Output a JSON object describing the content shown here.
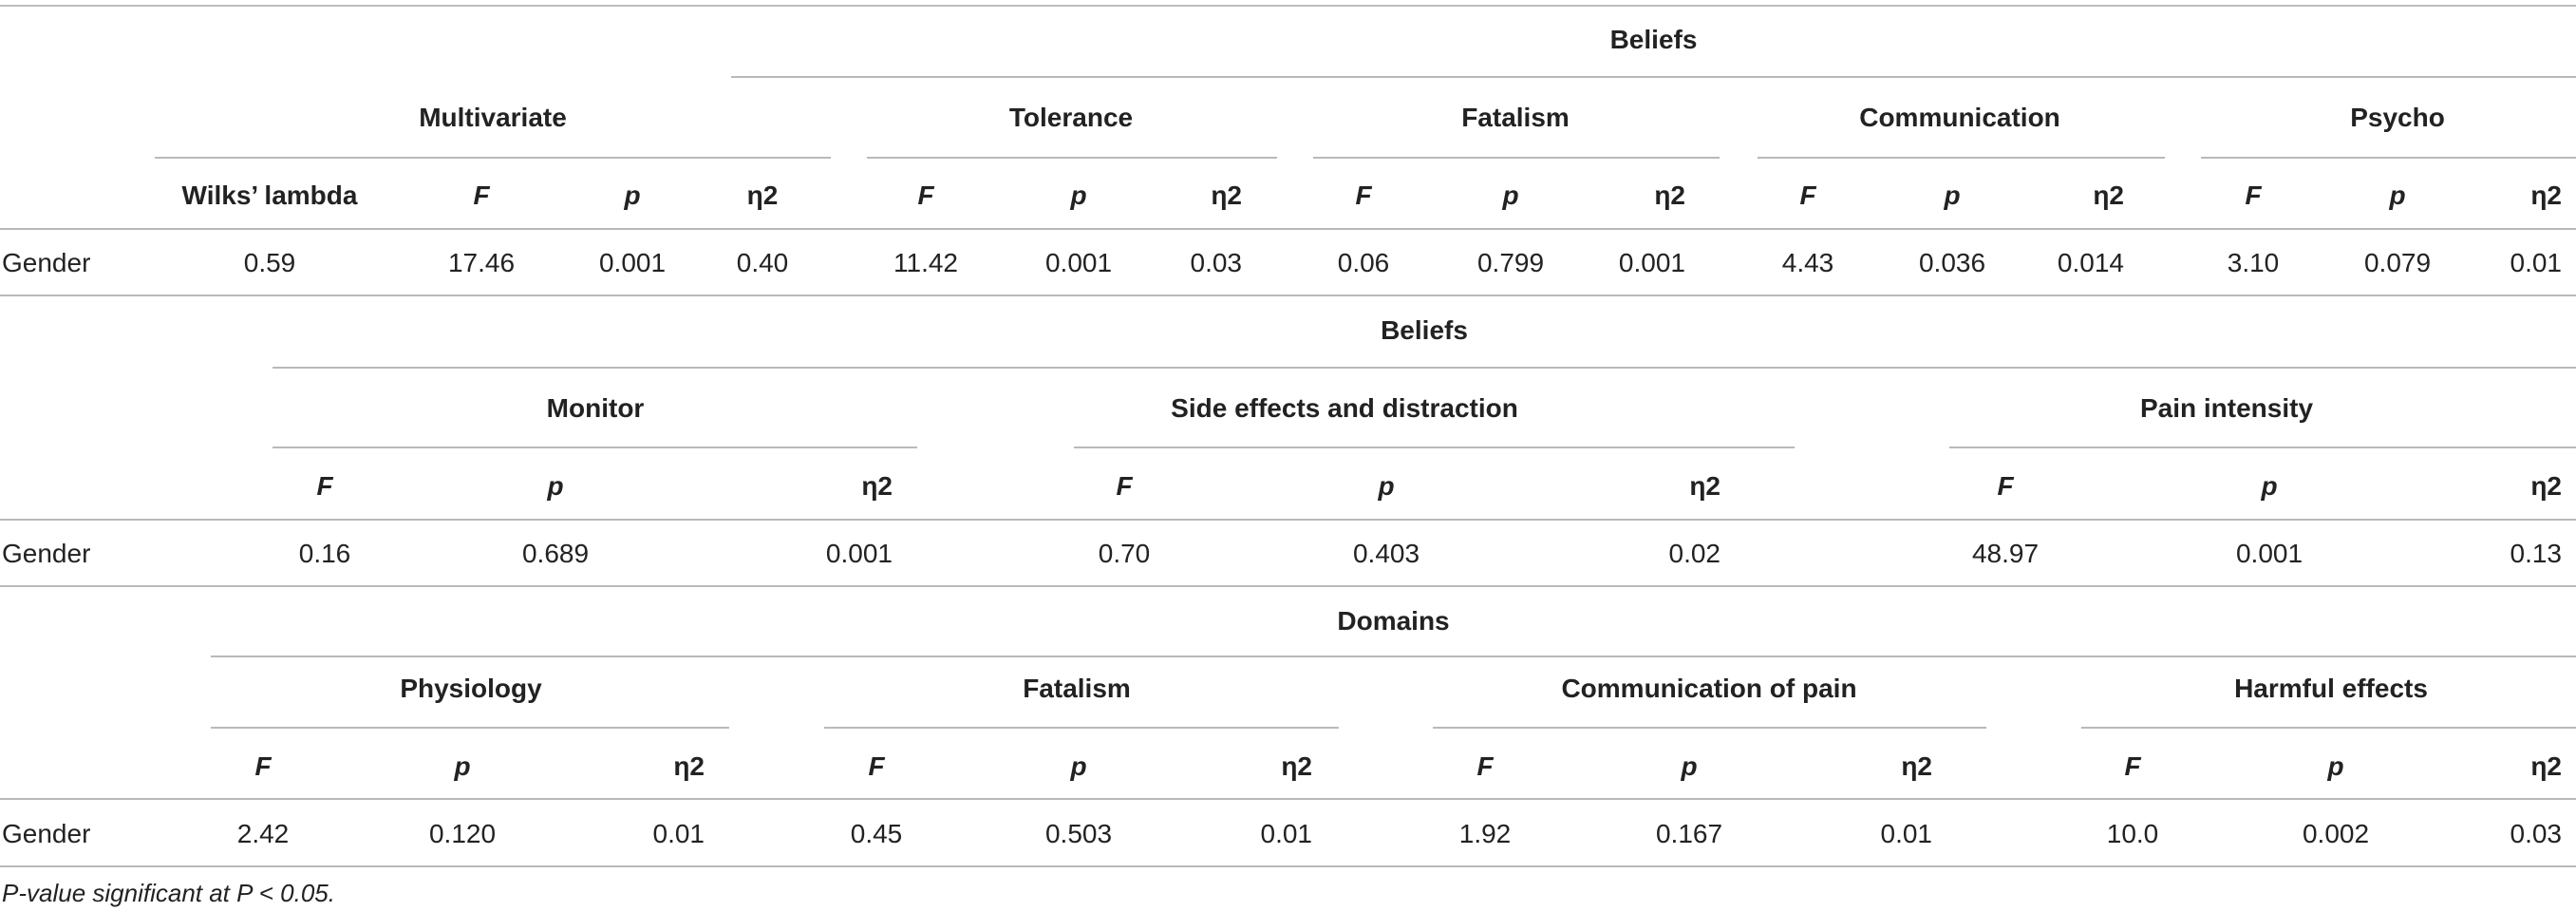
{
  "table1": {
    "super_header": "Beliefs",
    "group_headers": [
      "Multivariate",
      "Tolerance",
      "Fatalism",
      "Communication",
      "Psycho"
    ],
    "columns": [
      "Wilks’ lambda",
      "F",
      "p",
      "η2",
      "F",
      "p",
      "η2",
      "F",
      "p",
      "η2",
      "F",
      "p",
      "η2",
      "F",
      "p",
      "η2"
    ],
    "row_label": "Gender",
    "values": [
      "0.59",
      "17.46",
      "0.001",
      "0.40",
      "11.42",
      "0.001",
      "0.03",
      "0.06",
      "0.799",
      "0.001",
      "4.43",
      "0.036",
      "0.014",
      "3.10",
      "0.079",
      "0.01"
    ]
  },
  "table2": {
    "super_header": "Beliefs",
    "group_headers": [
      "Monitor",
      "Side effects and distraction",
      "Pain intensity"
    ],
    "columns": [
      "F",
      "p",
      "η2",
      "F",
      "p",
      "η2",
      "F",
      "p",
      "η2"
    ],
    "row_label": "Gender",
    "values": [
      "0.16",
      "0.689",
      "0.001",
      "0.70",
      "0.403",
      "0.02",
      "48.97",
      "0.001",
      "0.13"
    ]
  },
  "table3": {
    "super_header": "Domains",
    "group_headers": [
      "Physiology",
      "Fatalism",
      "Communication of pain",
      "Harmful effects"
    ],
    "columns": [
      "F",
      "p",
      "η2",
      "F",
      "p",
      "η2",
      "F",
      "p",
      "η2",
      "F",
      "p",
      "η2"
    ],
    "row_label": "Gender",
    "values": [
      "2.42",
      "0.120",
      "0.01",
      "0.45",
      "0.503",
      "0.01",
      "1.92",
      "0.167",
      "0.01",
      "10.0",
      "0.002",
      "0.03"
    ]
  },
  "footnote": "P-value significant at P < 0.05."
}
